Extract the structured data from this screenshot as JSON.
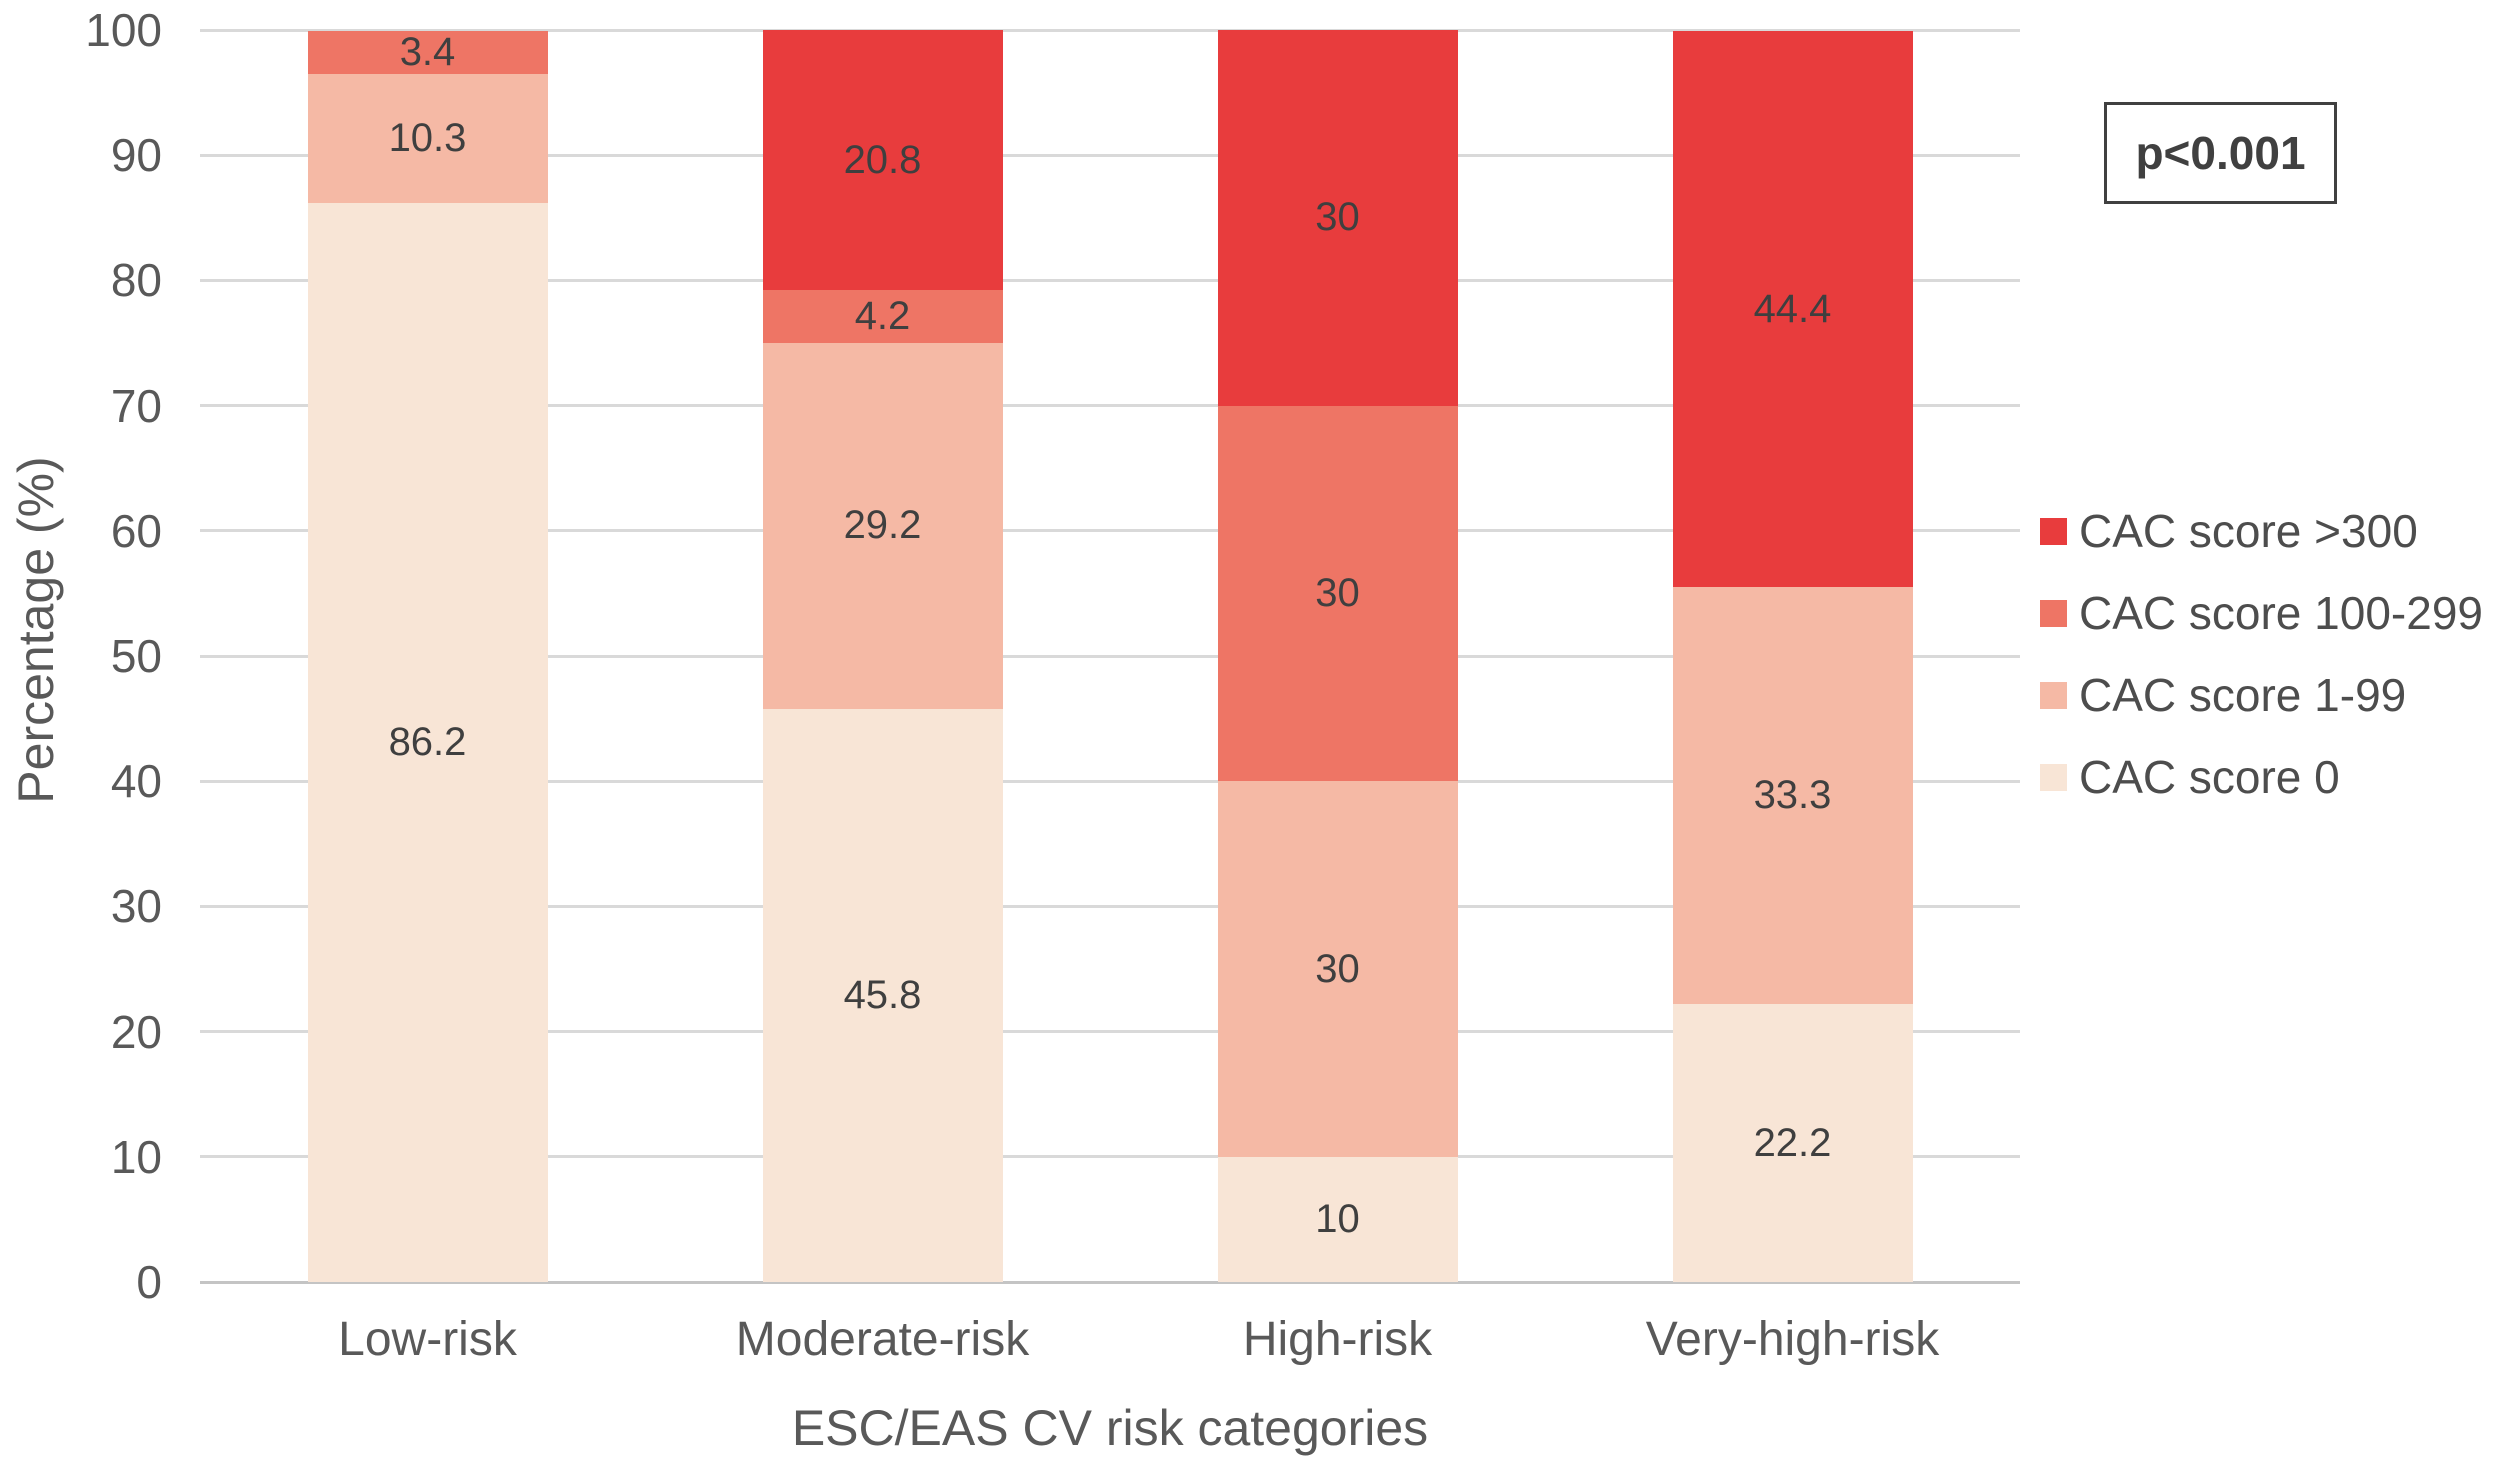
{
  "chart_data": {
    "type": "bar",
    "stacked": true,
    "title": "",
    "xlabel": "ESC/EAS CV risk categories",
    "ylabel": "Percentage (%)",
    "ylim": [
      0,
      100
    ],
    "yticks": [
      0,
      10,
      20,
      30,
      40,
      50,
      60,
      70,
      80,
      90,
      100
    ],
    "grid": true,
    "gridline_color": "#D9D9D9",
    "axis_line_color": "#C4C4C4",
    "text_color": "#595959",
    "data_label_color": "#3F3F3F",
    "categories": [
      "Low-risk",
      "Moderate-risk",
      "High-risk",
      "Very-high-risk"
    ],
    "series": [
      {
        "name": "CAC score 0",
        "color": "#F8E5D6",
        "values": [
          86.2,
          45.8,
          10,
          22.2
        ]
      },
      {
        "name": "CAC score 1-99",
        "color": "#F5B9A5",
        "values": [
          10.3,
          29.2,
          30,
          33.3
        ]
      },
      {
        "name": "CAC score 100-299",
        "color": "#EE7565",
        "values": [
          3.4,
          4.2,
          30,
          0
        ]
      },
      {
        "name": "CAC score >300",
        "color": "#E83C3D",
        "values": [
          0,
          20.8,
          30,
          44.4
        ]
      }
    ],
    "legend_order_top_to_bottom": [
      "CAC score >300",
      "CAC score 100-299",
      "CAC score 1-99",
      "CAC score 0"
    ],
    "legend_position": "right",
    "annotation": "p<0.001"
  }
}
